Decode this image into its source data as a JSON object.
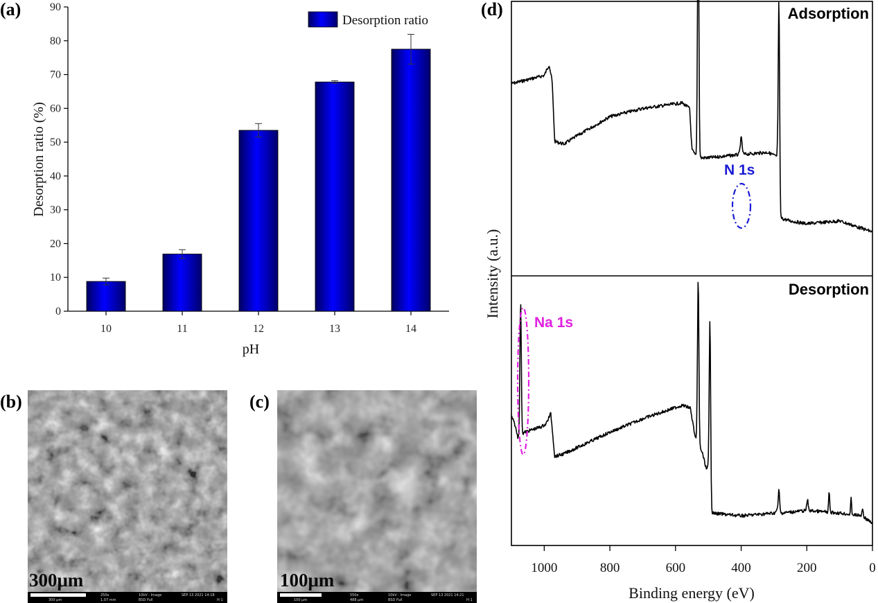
{
  "chart_data": [
    {
      "panel": "(a)",
      "type": "bar",
      "title": "",
      "xlabel": "pH",
      "ylabel": "Desorption ratio (%)",
      "categories": [
        "10",
        "11",
        "12",
        "13",
        "14"
      ],
      "series": [
        {
          "name": "Desorption ratio",
          "values": [
            8.8,
            16.9,
            53.5,
            67.8,
            77.5
          ],
          "errors": [
            1.0,
            1.3,
            2.0,
            0.4,
            4.4
          ]
        }
      ],
      "ylim": [
        0,
        90
      ],
      "yticks": [
        0,
        10,
        20,
        30,
        40,
        50,
        60,
        70,
        80,
        90
      ],
      "legend": "top-right",
      "bar_color": "#0000d8"
    },
    {
      "panel": "(d)",
      "type": "line",
      "xlabel": "Binding energy (eV)",
      "ylabel": "Intensity (a.u.)",
      "xlim": [
        1100,
        0
      ],
      "xticks": [
        1000,
        800,
        600,
        400,
        200,
        0
      ],
      "spectra": [
        {
          "name": "Adsorption",
          "annotation": "N 1s",
          "annotation_x": 400,
          "annotation_color": "#1a1ad6",
          "baseline": [
            [
              1100,
              0.3
            ],
            [
              1000,
              0.27
            ],
            [
              985,
              0.23
            ],
            [
              976,
              0.29
            ],
            [
              968,
              0.51
            ],
            [
              940,
              0.52
            ],
            [
              900,
              0.49
            ],
            [
              800,
              0.42
            ],
            [
              700,
              0.39
            ],
            [
              580,
              0.37
            ],
            [
              557,
              0.39
            ],
            [
              550,
              0.54
            ],
            [
              540,
              0.56
            ],
            [
              536,
              0.57
            ],
            [
              500,
              0.57
            ],
            [
              420,
              0.56
            ],
            [
              320,
              0.55
            ],
            [
              300,
              0.56
            ],
            [
              290,
              0.57
            ],
            [
              280,
              0.79
            ],
            [
              250,
              0.8
            ],
            [
              200,
              0.81
            ],
            [
              100,
              0.8
            ],
            [
              50,
              0.82
            ],
            [
              0,
              0.84
            ]
          ],
          "peaks": [
            {
              "x": 531,
              "height": 0.92,
              "width": 3
            },
            {
              "x": 400,
              "height": 0.06,
              "width": 4
            },
            {
              "x": 285,
              "height": 0.68,
              "width": 3
            }
          ]
        },
        {
          "name": "Desorption",
          "annotation": "Na 1s",
          "annotation_x": 1072,
          "annotation_color": "#e020e0",
          "baseline": [
            [
              1100,
              0.52
            ],
            [
              1090,
              0.55
            ],
            [
              1080,
              0.6
            ],
            [
              1060,
              0.58
            ],
            [
              1010,
              0.56
            ],
            [
              995,
              0.55
            ],
            [
              980,
              0.51
            ],
            [
              968,
              0.67
            ],
            [
              940,
              0.66
            ],
            [
              800,
              0.58
            ],
            [
              700,
              0.53
            ],
            [
              580,
              0.48
            ],
            [
              555,
              0.49
            ],
            [
              540,
              0.6
            ],
            [
              535,
              0.62
            ],
            [
              520,
              0.65
            ],
            [
              505,
              0.72
            ],
            [
              498,
              0.7
            ],
            [
              490,
              0.88
            ],
            [
              400,
              0.89
            ],
            [
              300,
              0.88
            ],
            [
              290,
              0.87
            ],
            [
              280,
              0.88
            ],
            [
              200,
              0.87
            ],
            [
              100,
              0.88
            ],
            [
              30,
              0.89
            ],
            [
              0,
              0.92
            ]
          ],
          "peaks": [
            {
              "x": 1072,
              "height": 0.5,
              "width": 3
            },
            {
              "x": 531,
              "height": 0.62,
              "width": 3
            },
            {
              "x": 495,
              "height": 0.6,
              "width": 3
            },
            {
              "x": 285,
              "height": 0.08,
              "width": 3
            },
            {
              "x": 198,
              "height": 0.04,
              "width": 3
            },
            {
              "x": 132,
              "height": 0.08,
              "width": 2
            },
            {
              "x": 65,
              "height": 0.06,
              "width": 2
            },
            {
              "x": 30,
              "height": 0.03,
              "width": 2
            }
          ]
        }
      ]
    }
  ],
  "panels": {
    "a": "(a)",
    "b": "(b)",
    "c": "(c)",
    "d": "(d)"
  },
  "sem_images": [
    {
      "panel": "(b)",
      "scale_label": "300μm",
      "info": {
        "bar": "300 µm",
        "mag": "250x",
        "hfw": "1.07 mm",
        "mode": "10kV - Image",
        "det": "BSD Full",
        "date": "SEP 13 2021 14:18",
        "id": "H-1"
      }
    },
    {
      "panel": "(c)",
      "scale_label": "100μm",
      "info": {
        "bar": "100 µm",
        "mag": "550x",
        "hfw": "488 µm",
        "mode": "10kV - Image",
        "det": "BSD Full",
        "date": "SEP 13 2021 14:21",
        "id": "H-1"
      }
    }
  ],
  "colors": {
    "bar": "#0000d8",
    "bar_dark": "#000070",
    "n1s": "#1a1ad6",
    "na1s": "#e020e0"
  }
}
